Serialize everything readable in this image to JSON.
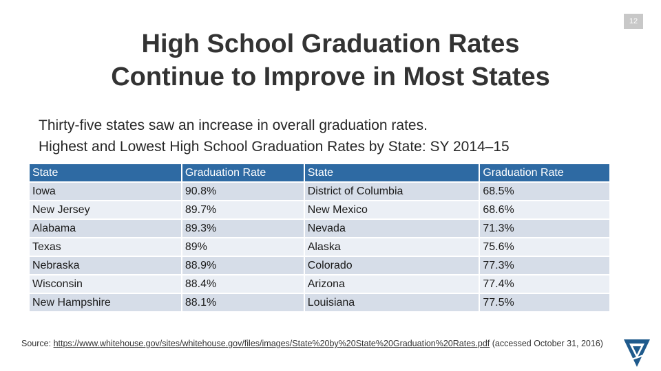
{
  "slide": {
    "page_number": "12",
    "title_line1": "High School Graduation Rates",
    "title_line2": "Continue to Improve in Most States",
    "subtitle_line1": "Thirty-five states saw an increase in overall graduation rates.",
    "subtitle_line2": "Highest and Lowest High School Graduation Rates by State: SY 2014–15"
  },
  "table": {
    "headers": [
      "State",
      "Graduation Rate",
      "State",
      "Graduation Rate"
    ],
    "rows": [
      [
        "Iowa",
        "90.8%",
        "District of Columbia",
        "68.5%"
      ],
      [
        "New Jersey",
        "89.7%",
        "New Mexico",
        "68.6%"
      ],
      [
        "Alabama",
        "89.3%",
        "Nevada",
        "71.3%"
      ],
      [
        "Texas",
        "89%",
        "Alaska",
        "75.6%"
      ],
      [
        "Nebraska",
        "88.9%",
        "Colorado",
        "77.3%"
      ],
      [
        "Wisconsin",
        "88.4%",
        "Arizona",
        "77.4%"
      ],
      [
        "New Hampshire",
        "88.1%",
        "Louisiana",
        "77.5%"
      ]
    ]
  },
  "source": {
    "prefix": "Source: ",
    "url": "https://www.whitehouse.gov/sites/whitehouse.gov/files/images/State%20by%20State%20Graduation%20Rates.pdf",
    "suffix": "  (accessed October 31, 2016)"
  },
  "colors": {
    "header_bg": "#2e6aa3",
    "row_odd": "#d6dde8",
    "row_even": "#ebeff5",
    "logo_blue": "#1f5a8c"
  }
}
